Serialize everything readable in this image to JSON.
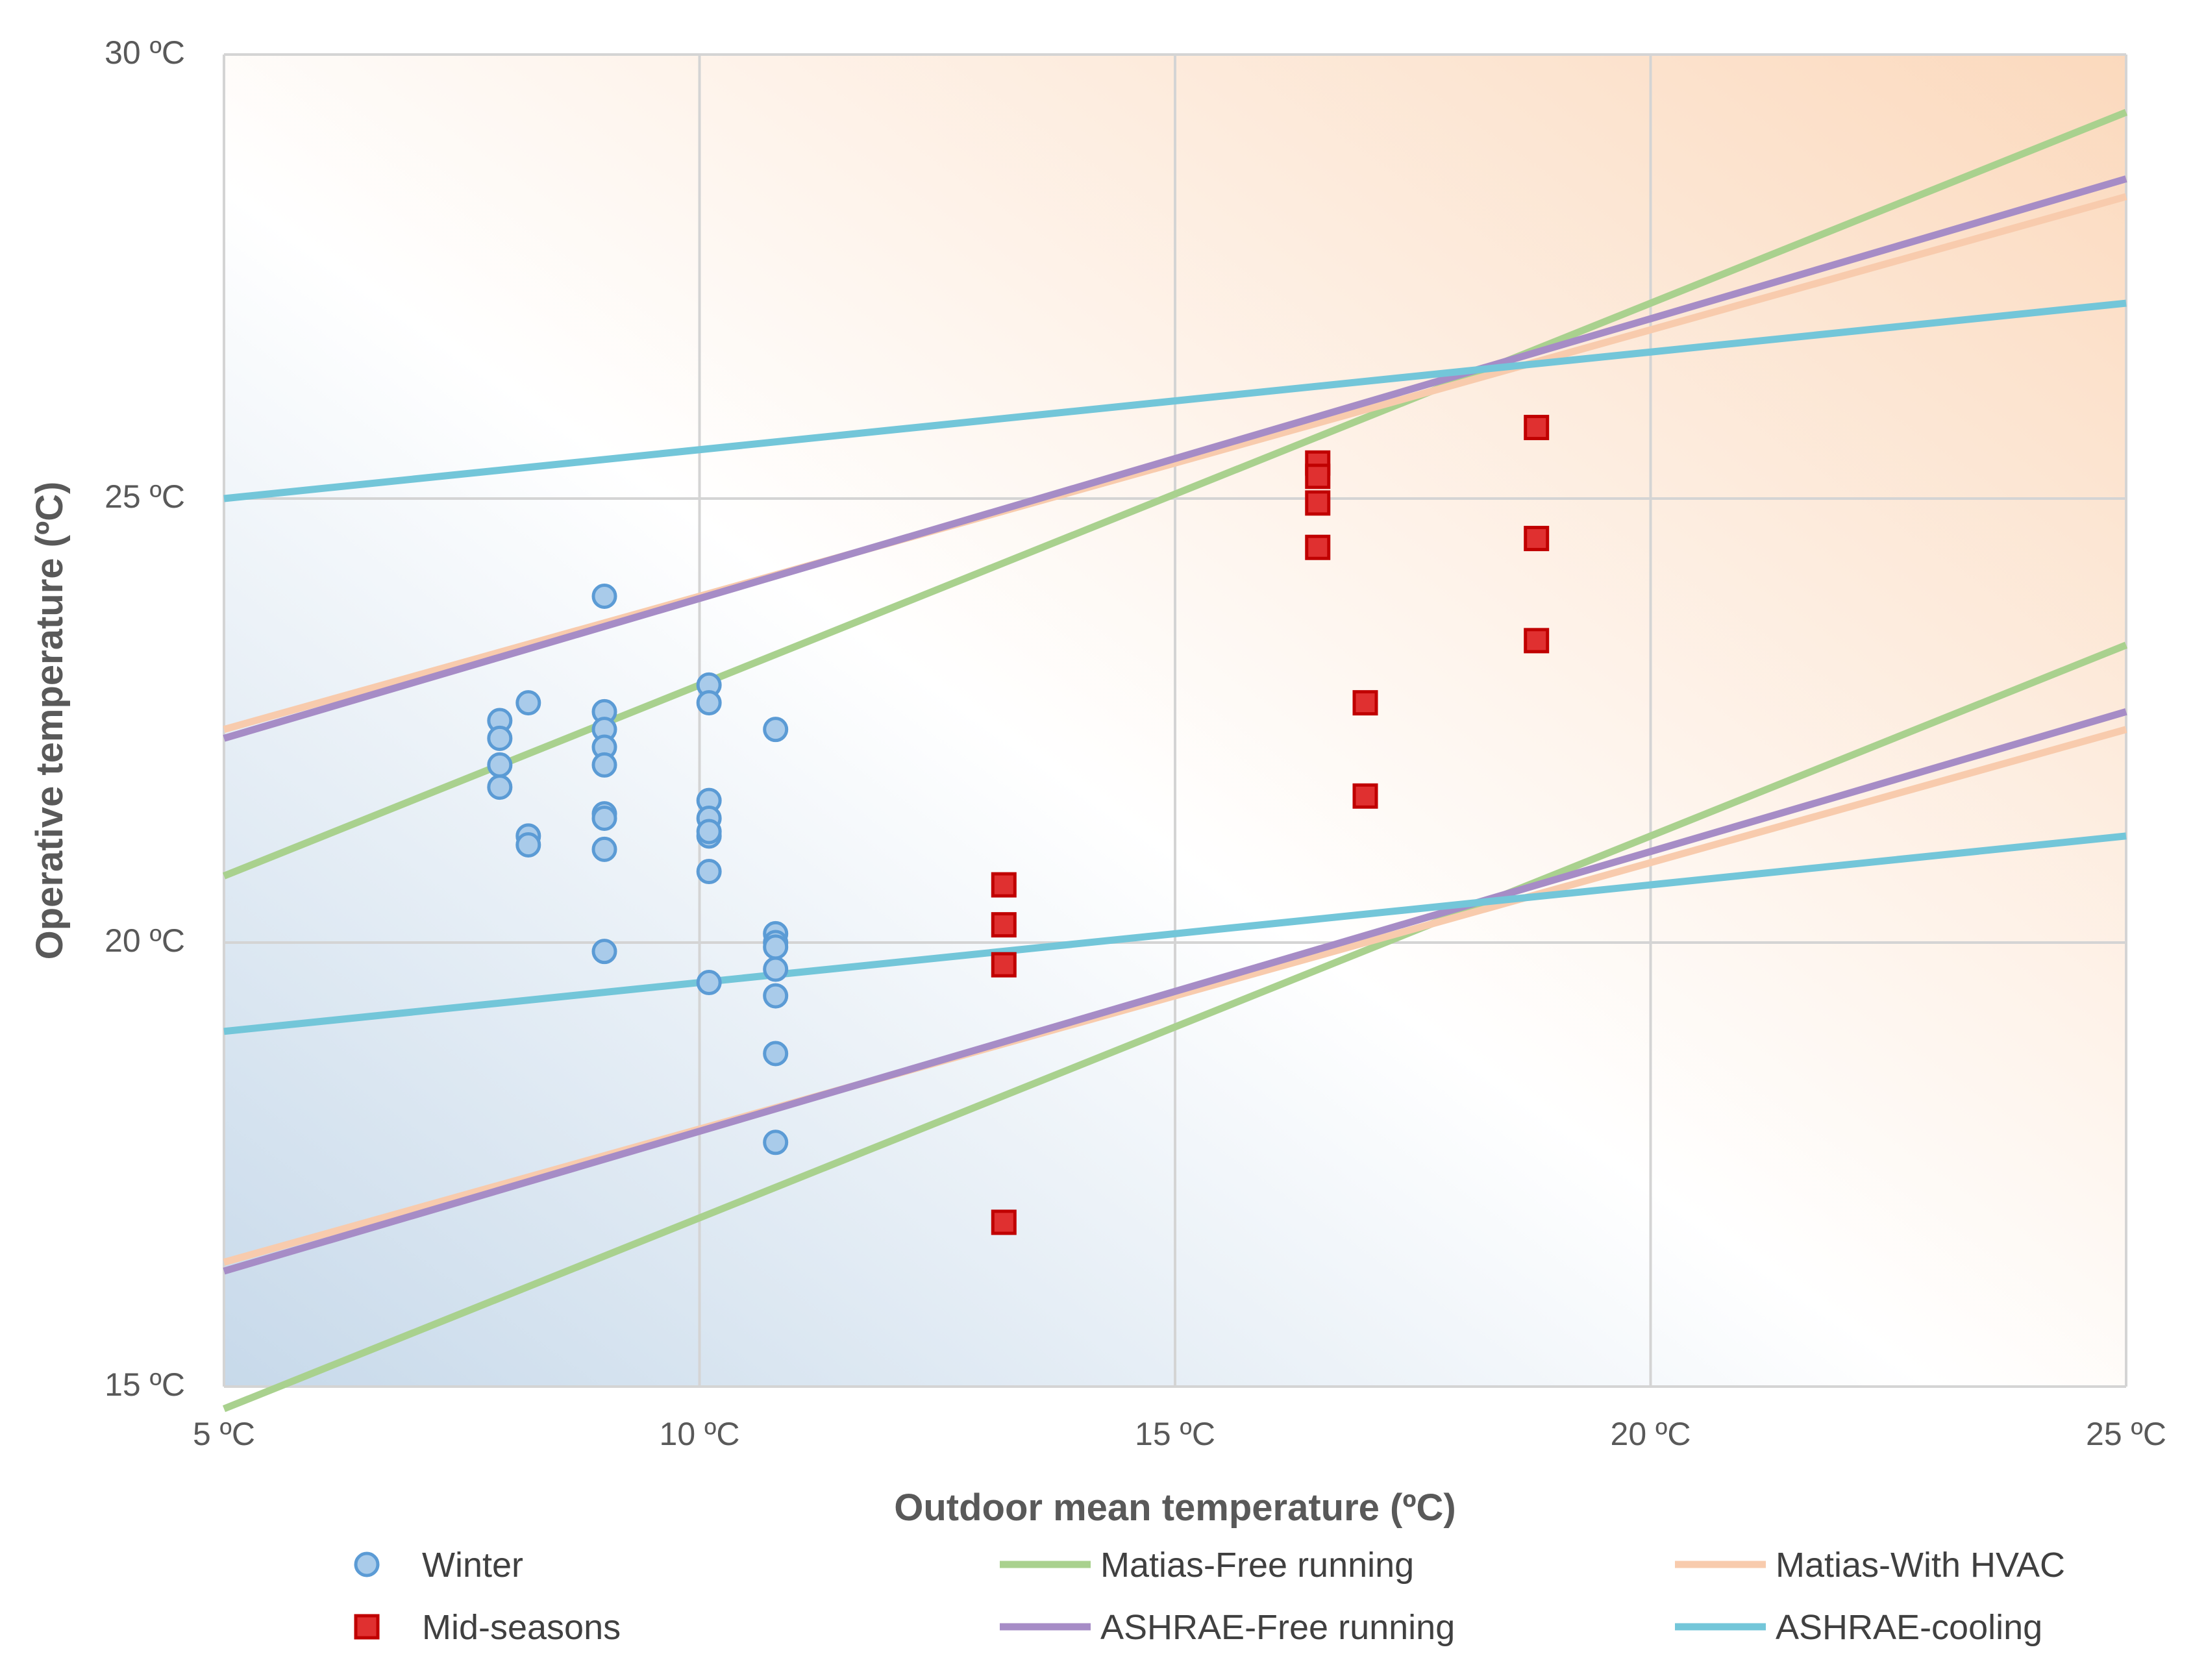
{
  "chart_data": {
    "type": "scatter",
    "title": "",
    "xlabel": "Outdoor mean temperature (ºC)",
    "ylabel": "Operative temperature (ºC)",
    "xlim": [
      5,
      25
    ],
    "ylim": [
      15,
      30
    ],
    "x_ticks": [
      {
        "value": 5,
        "label": "5 ºC"
      },
      {
        "value": 10,
        "label": "10 ºC"
      },
      {
        "value": 15,
        "label": "15 ºC"
      },
      {
        "value": 20,
        "label": "20 ºC"
      },
      {
        "value": 25,
        "label": "25 ºC"
      }
    ],
    "y_ticks": [
      {
        "value": 15,
        "label": "15 ºC"
      },
      {
        "value": 20,
        "label": "20 ºC"
      },
      {
        "value": 25,
        "label": "25 ºC"
      },
      {
        "value": 30,
        "label": "30 ºC"
      }
    ],
    "grid": true,
    "legend_position": "bottom",
    "scatter_series": [
      {
        "name": "Winter",
        "marker": "circle",
        "color": "#5b9bd5",
        "fill": "#a9cbea",
        "points": [
          [
            7.9,
            22.5
          ],
          [
            7.9,
            22.3
          ],
          [
            7.9,
            22.0
          ],
          [
            7.9,
            21.75
          ],
          [
            8.2,
            22.7
          ],
          [
            8.2,
            21.2
          ],
          [
            8.2,
            21.1
          ],
          [
            9.0,
            23.9
          ],
          [
            9.0,
            22.6
          ],
          [
            9.0,
            22.4
          ],
          [
            9.0,
            22.2
          ],
          [
            9.0,
            22.0
          ],
          [
            9.0,
            21.45
          ],
          [
            9.0,
            21.4
          ],
          [
            9.0,
            21.05
          ],
          [
            9.0,
            19.9
          ],
          [
            10.1,
            22.9
          ],
          [
            10.1,
            22.7
          ],
          [
            10.1,
            21.6
          ],
          [
            10.1,
            21.4
          ],
          [
            10.1,
            21.2
          ],
          [
            10.1,
            21.25
          ],
          [
            10.1,
            20.8
          ],
          [
            10.1,
            19.55
          ],
          [
            10.8,
            22.4
          ],
          [
            10.8,
            20.1
          ],
          [
            10.8,
            20.0
          ],
          [
            10.8,
            19.95
          ],
          [
            10.8,
            19.7
          ],
          [
            10.8,
            19.4
          ],
          [
            10.8,
            18.75
          ],
          [
            10.8,
            17.75
          ]
        ]
      },
      {
        "name": "Mid-seasons",
        "marker": "square",
        "color": "#c00000",
        "fill": "#e03030",
        "points": [
          [
            13.2,
            20.65
          ],
          [
            13.2,
            20.2
          ],
          [
            13.2,
            19.75
          ],
          [
            13.2,
            16.85
          ],
          [
            16.5,
            25.4
          ],
          [
            16.5,
            25.25
          ],
          [
            16.5,
            24.95
          ],
          [
            16.5,
            24.45
          ],
          [
            17.0,
            22.7
          ],
          [
            17.0,
            21.65
          ],
          [
            18.8,
            25.8
          ],
          [
            18.8,
            24.55
          ],
          [
            18.8,
            23.4
          ]
        ]
      }
    ],
    "line_series": [
      {
        "name": "Matias-Free running",
        "color": "#a9d18e",
        "lines": [
          [
            [
              5,
              20.75
            ],
            [
              25,
              29.35
            ]
          ],
          [
            [
              5,
              14.75
            ],
            [
              25,
              23.35
            ]
          ]
        ]
      },
      {
        "name": "Matias-With HVAC",
        "color": "#f8cbad",
        "lines": [
          [
            [
              5,
              22.4
            ],
            [
              25,
              28.4
            ]
          ],
          [
            [
              5,
              16.4
            ],
            [
              25,
              22.4
            ]
          ]
        ]
      },
      {
        "name": "ASHRAE-Free running",
        "color": "#a68cc6",
        "lines": [
          [
            [
              5,
              22.3
            ],
            [
              25,
              28.6
            ]
          ],
          [
            [
              5,
              16.3
            ],
            [
              25,
              22.6
            ]
          ]
        ]
      },
      {
        "name": "ASHRAE-cooling",
        "color": "#73c6d9",
        "lines": [
          [
            [
              5,
              25.0
            ],
            [
              25,
              27.2
            ]
          ],
          [
            [
              5,
              19.0
            ],
            [
              25,
              21.2
            ]
          ]
        ]
      }
    ],
    "legend": [
      {
        "label": "Winter",
        "kind": "circle",
        "color": "#5b9bd5",
        "fill": "#a9cbea"
      },
      {
        "label": "Matias-Free running",
        "kind": "line",
        "color": "#a9d18e"
      },
      {
        "label": "Matias-With HVAC",
        "kind": "line",
        "color": "#f8cbad"
      },
      {
        "label": "Mid-seasons",
        "kind": "square",
        "color": "#c00000",
        "fill": "#e03030"
      },
      {
        "label": "ASHRAE-Free running",
        "kind": "line",
        "color": "#a68cc6"
      },
      {
        "label": "ASHRAE-cooling",
        "kind": "line",
        "color": "#73c6d9"
      }
    ]
  }
}
